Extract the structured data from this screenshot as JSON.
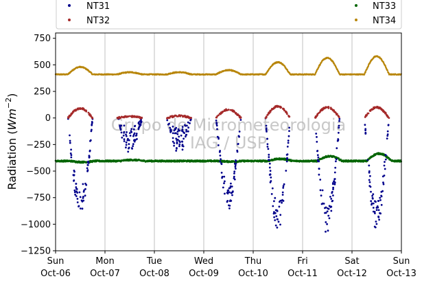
{
  "chart_data": {
    "type": "scatter",
    "ylabel_main": "Radiation (",
    "ylabel_unit_base": "Wm",
    "ylabel_unit_exp": "−2",
    "ylabel_close": ")",
    "ylim": [
      -1250,
      800
    ],
    "yticks": [
      {
        "value": 750,
        "label": "750"
      },
      {
        "value": 500,
        "label": "500"
      },
      {
        "value": 250,
        "label": "250"
      },
      {
        "value": 0,
        "label": "0"
      },
      {
        "value": -250,
        "label": "−250"
      },
      {
        "value": -500,
        "label": "−500"
      },
      {
        "value": -750,
        "label": "−750"
      },
      {
        "value": -1000,
        "label": "−1000"
      },
      {
        "value": -1250,
        "label": "−1250"
      }
    ],
    "xlim": [
      "2019-10-06",
      "2019-10-13"
    ],
    "xticks": [
      {
        "day": 0,
        "weekday": "Sun",
        "date": "Oct-06"
      },
      {
        "day": 1,
        "weekday": "Mon",
        "date": "Oct-07"
      },
      {
        "day": 2,
        "weekday": "Tue",
        "date": "Oct-08"
      },
      {
        "day": 3,
        "weekday": "Wed",
        "date": "Oct-09"
      },
      {
        "day": 4,
        "weekday": "Thu",
        "date": "Oct-10"
      },
      {
        "day": 5,
        "weekday": "Fri",
        "date": "Oct-11"
      },
      {
        "day": 6,
        "weekday": "Sat",
        "date": "Oct-12"
      },
      {
        "day": 7,
        "weekday": "Sun",
        "date": "Oct-13"
      }
    ],
    "grid": "vertical",
    "legend_placement": "top",
    "watermark": [
      "Grupo de Micrometeorologia",
      "IAG / USP"
    ],
    "series": [
      {
        "name": "NT31",
        "color": "#00008b",
        "baseline": 0,
        "daily_min": [
          -900,
          -310,
          -320,
          -850,
          -1080,
          -1080,
          -1040
        ]
      },
      {
        "name": "NT32",
        "color": "#a52a2a",
        "baseline": 0,
        "daily_peak": [
          90,
          15,
          20,
          80,
          110,
          100,
          100
        ]
      },
      {
        "name": "NT33",
        "color": "#006400",
        "night_level": -405,
        "daily_variation": [
          -10,
          10,
          0,
          -5,
          20,
          45,
          70
        ]
      },
      {
        "name": "NT34",
        "color": "#b8860b",
        "night_level": 410,
        "daily_peak": [
          480,
          430,
          430,
          450,
          525,
          565,
          580
        ]
      }
    ]
  }
}
